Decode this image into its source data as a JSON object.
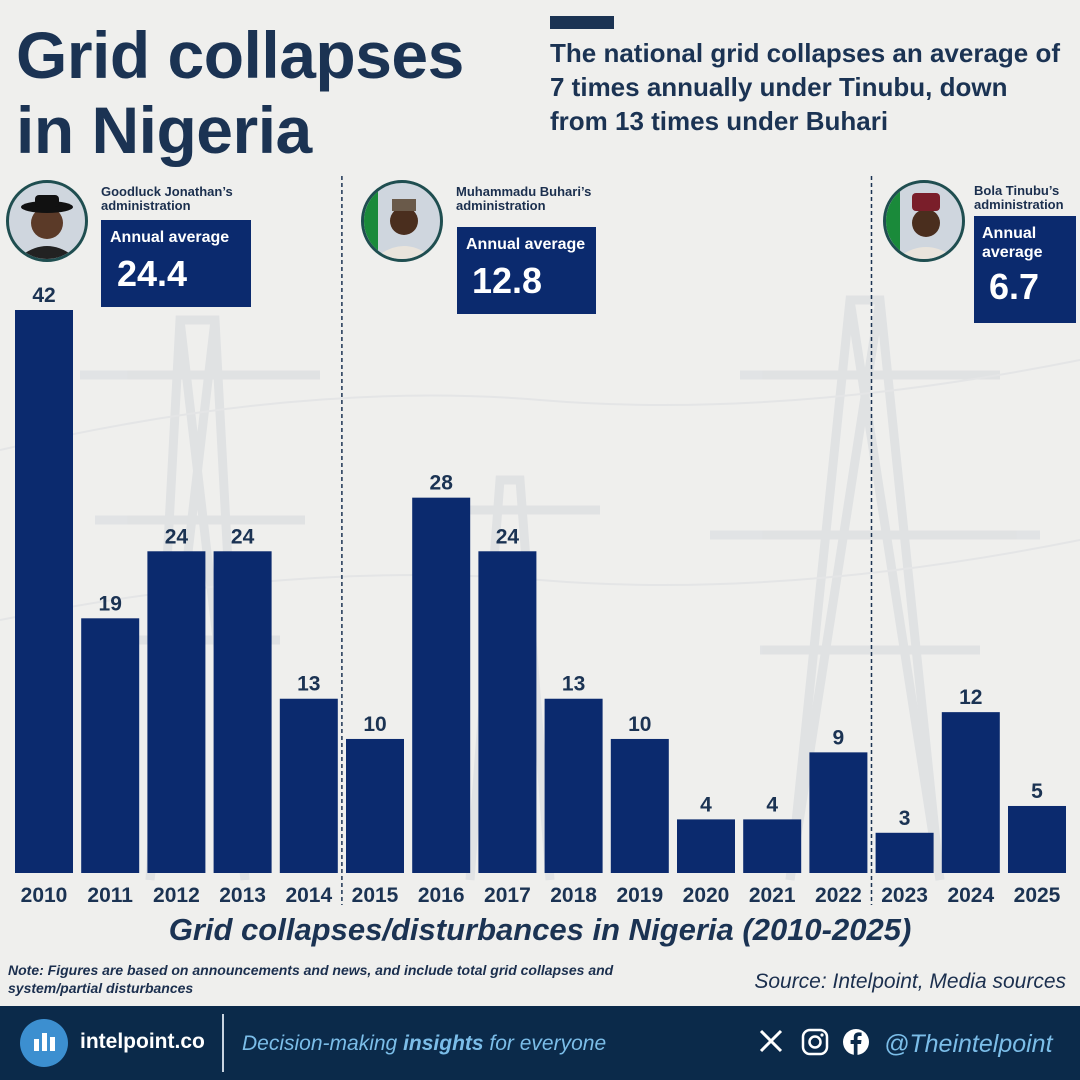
{
  "header": {
    "title_line1": "Grid collapses",
    "title_line2": "in Nigeria",
    "subtitle": "The national grid collapses an average of 7 times annually under Tinubu, down from 13 times under Buhari"
  },
  "administrations": [
    {
      "name_line1": "Goodluck Jonathan’s",
      "name_line2": "administration",
      "avg_label": "Annual average",
      "avg_value": "24.4"
    },
    {
      "name_line1": "Muhammadu Buhari’s",
      "name_line2": "administration",
      "avg_label": "Annual average",
      "avg_value": "12.8"
    },
    {
      "name_line1": "Bola Tinubu’s",
      "name_line2": "administration",
      "avg_label_line1": "Annual",
      "avg_label_line2": "average",
      "avg_value": "6.7"
    }
  ],
  "chart_data": {
    "type": "bar",
    "title": "Grid collapses/disturbances in Nigeria (2010-2025)",
    "categories": [
      "2010",
      "2011",
      "2012",
      "2013",
      "2014",
      "2015",
      "2016",
      "2017",
      "2018",
      "2019",
      "2020",
      "2021",
      "2022",
      "2023",
      "2024",
      "2025"
    ],
    "values": [
      42,
      19,
      24,
      24,
      13,
      10,
      28,
      24,
      13,
      10,
      4,
      4,
      9,
      3,
      12,
      5
    ],
    "xlabel": "",
    "ylabel": "",
    "ylim": [
      0,
      42
    ],
    "grid": false,
    "bar_color": "#0b2a6e",
    "administration_boundaries_after": [
      "2014",
      "2022"
    ]
  },
  "note": "Note: Figures are based on announcements and news, and include total grid collapses and system/partial disturbances",
  "source": "Source: Intelpoint, Media sources",
  "footer": {
    "brand": "intelpoint.co",
    "tagline_pre": "Decision-making ",
    "tagline_bold": "insights",
    "tagline_post": " for everyone",
    "handle": "@Theintelpoint"
  },
  "colors": {
    "accent": "#0b2a6e",
    "heading": "#1b3353",
    "footer_bg": "#0b2a4a",
    "footer_text": "#7bbde8"
  }
}
